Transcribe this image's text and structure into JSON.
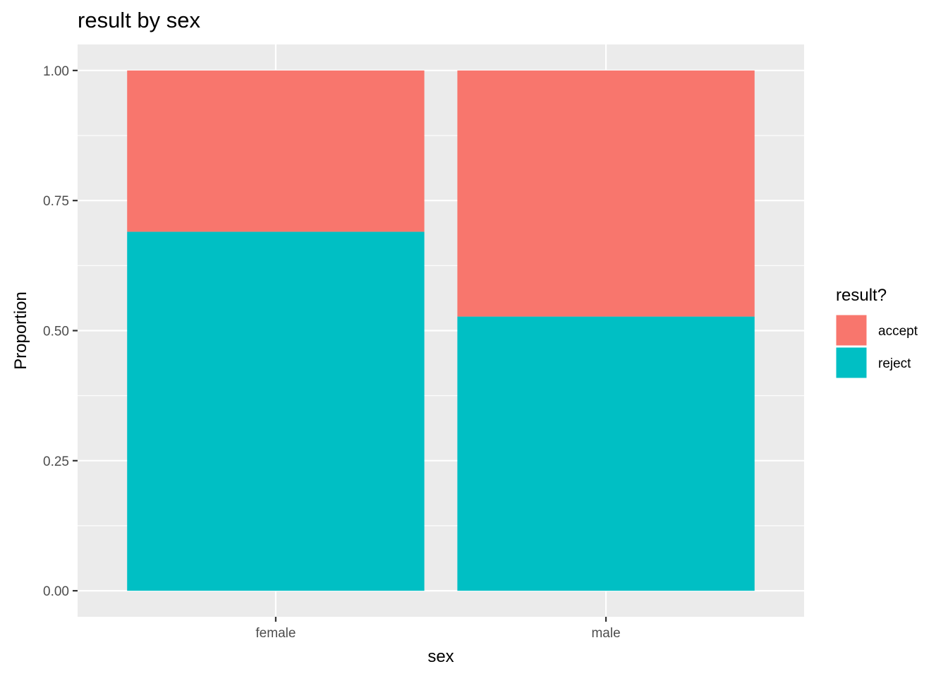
{
  "chart_data": {
    "type": "bar",
    "stacked": true,
    "title": "result by sex",
    "xlabel": "sex",
    "ylabel": "Proportion",
    "categories": [
      "female",
      "male"
    ],
    "series": [
      {
        "name": "reject",
        "values": [
          0.69,
          0.527
        ]
      },
      {
        "name": "accept",
        "values": [
          0.31,
          0.473
        ]
      }
    ],
    "ylim": [
      -0.05,
      1.05
    ],
    "yticks": [
      0.0,
      0.25,
      0.5,
      0.75,
      1.0
    ],
    "ytick_labels": [
      "0.00",
      "0.25",
      "0.50",
      "0.75",
      "1.00"
    ],
    "grid": true,
    "legend": {
      "title": "result?",
      "placement": "right",
      "entries": [
        "accept",
        "reject"
      ]
    },
    "colors": {
      "accept": "#F8766D",
      "reject": "#00BFC4",
      "panel_background": "#EBEBEB",
      "grid": "#FFFFFF"
    }
  }
}
